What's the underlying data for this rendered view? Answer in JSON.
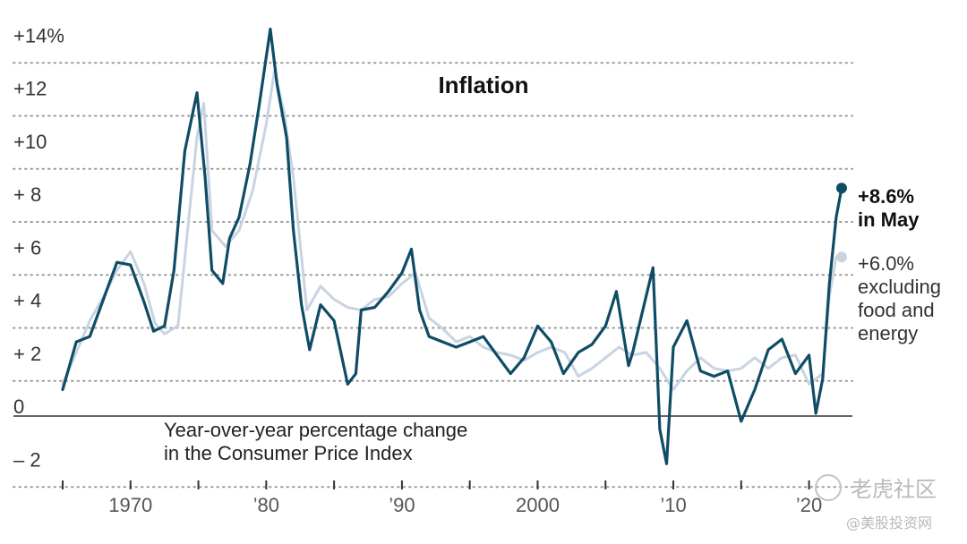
{
  "chart_data": {
    "type": "line",
    "title": "Inflation",
    "subtitle_lines": [
      "Year-over-year percentage change",
      "in the Consumer Price Index"
    ],
    "ylim": [
      -2.5,
      14.5
    ],
    "xlim": [
      1965,
      2022.6
    ],
    "y_ticks": [
      {
        "value": 14,
        "label": "+14%"
      },
      {
        "value": 12,
        "label": "+12"
      },
      {
        "value": 10,
        "label": "+10"
      },
      {
        "value": 8,
        "label": "+  8"
      },
      {
        "value": 6,
        "label": "+  6"
      },
      {
        "value": 4,
        "label": "+  4"
      },
      {
        "value": 2,
        "label": "+  2"
      },
      {
        "value": 0,
        "label": "0"
      },
      {
        "value": -2,
        "label": "–  2"
      }
    ],
    "x_tick_marks": [
      1965,
      1970,
      1975,
      1980,
      1985,
      1990,
      1995,
      2000,
      2005,
      2010,
      2015,
      2020
    ],
    "x_tick_labels": [
      {
        "value": 1970,
        "label": "1970"
      },
      {
        "value": 1980,
        "label": "’80"
      },
      {
        "value": 1990,
        "label": "’90"
      },
      {
        "value": 2000,
        "label": "2000"
      },
      {
        "value": 2010,
        "label": "’10"
      },
      {
        "value": 2020,
        "label": "’20"
      }
    ],
    "series": [
      {
        "name": "Core CPI (excluding food and energy)",
        "color": "#c9d4e2",
        "points": [
          [
            1965.0,
            1.2
          ],
          [
            1966.0,
            2.4
          ],
          [
            1967.0,
            3.6
          ],
          [
            1968.0,
            4.5
          ],
          [
            1969.0,
            5.5
          ],
          [
            1970.0,
            6.2
          ],
          [
            1971.0,
            5.0
          ],
          [
            1971.8,
            3.5
          ],
          [
            1972.5,
            3.1
          ],
          [
            1973.5,
            3.4
          ],
          [
            1974.3,
            7.5
          ],
          [
            1974.9,
            10.5
          ],
          [
            1975.4,
            11.8
          ],
          [
            1976.0,
            7.0
          ],
          [
            1977.0,
            6.4
          ],
          [
            1978.0,
            7.0
          ],
          [
            1979.0,
            8.5
          ],
          [
            1980.0,
            11.0
          ],
          [
            1980.6,
            13.0
          ],
          [
            1981.3,
            11.5
          ],
          [
            1982.0,
            9.0
          ],
          [
            1983.0,
            4.0
          ],
          [
            1984.0,
            4.9
          ],
          [
            1985.0,
            4.4
          ],
          [
            1986.0,
            4.1
          ],
          [
            1987.0,
            4.0
          ],
          [
            1988.0,
            4.4
          ],
          [
            1989.0,
            4.5
          ],
          [
            1990.0,
            5.0
          ],
          [
            1991.0,
            5.4
          ],
          [
            1992.0,
            3.7
          ],
          [
            1993.0,
            3.3
          ],
          [
            1994.0,
            2.8
          ],
          [
            1995.0,
            3.0
          ],
          [
            1996.0,
            2.6
          ],
          [
            1997.0,
            2.4
          ],
          [
            1998.0,
            2.3
          ],
          [
            1999.0,
            2.1
          ],
          [
            2000.0,
            2.4
          ],
          [
            2001.0,
            2.6
          ],
          [
            2002.0,
            2.4
          ],
          [
            2003.0,
            1.5
          ],
          [
            2004.0,
            1.8
          ],
          [
            2005.0,
            2.2
          ],
          [
            2006.0,
            2.6
          ],
          [
            2007.0,
            2.3
          ],
          [
            2008.0,
            2.4
          ],
          [
            2009.0,
            1.8
          ],
          [
            2010.0,
            1.0
          ],
          [
            2011.0,
            1.7
          ],
          [
            2012.0,
            2.2
          ],
          [
            2013.0,
            1.8
          ],
          [
            2014.0,
            1.7
          ],
          [
            2015.0,
            1.8
          ],
          [
            2016.0,
            2.2
          ],
          [
            2017.0,
            1.8
          ],
          [
            2018.0,
            2.2
          ],
          [
            2019.0,
            2.3
          ],
          [
            2020.0,
            1.2
          ],
          [
            2021.0,
            1.6
          ],
          [
            2021.5,
            4.5
          ],
          [
            2022.0,
            6.0
          ],
          [
            2022.4,
            6.0
          ]
        ]
      },
      {
        "name": "CPI (all items)",
        "color": "#0f4c66",
        "points": [
          [
            1965.0,
            1.0
          ],
          [
            1966.0,
            2.8
          ],
          [
            1967.0,
            3.0
          ],
          [
            1968.0,
            4.4
          ],
          [
            1969.0,
            5.8
          ],
          [
            1970.0,
            5.7
          ],
          [
            1971.0,
            4.3
          ],
          [
            1971.7,
            3.2
          ],
          [
            1972.5,
            3.4
          ],
          [
            1973.2,
            5.5
          ],
          [
            1974.0,
            10.0
          ],
          [
            1974.9,
            12.2
          ],
          [
            1975.5,
            9.0
          ],
          [
            1976.0,
            5.5
          ],
          [
            1976.8,
            5.0
          ],
          [
            1977.3,
            6.7
          ],
          [
            1978.0,
            7.5
          ],
          [
            1978.8,
            9.5
          ],
          [
            1979.5,
            11.8
          ],
          [
            1980.3,
            14.6
          ],
          [
            1980.8,
            12.5
          ],
          [
            1981.5,
            10.5
          ],
          [
            1982.0,
            7.0
          ],
          [
            1982.6,
            4.2
          ],
          [
            1983.2,
            2.5
          ],
          [
            1984.0,
            4.2
          ],
          [
            1985.0,
            3.6
          ],
          [
            1986.0,
            1.2
          ],
          [
            1986.6,
            1.6
          ],
          [
            1987.0,
            4.0
          ],
          [
            1988.0,
            4.1
          ],
          [
            1989.0,
            4.7
          ],
          [
            1990.0,
            5.4
          ],
          [
            1990.7,
            6.3
          ],
          [
            1991.3,
            4.0
          ],
          [
            1992.0,
            3.0
          ],
          [
            1993.0,
            2.8
          ],
          [
            1994.0,
            2.6
          ],
          [
            1995.0,
            2.8
          ],
          [
            1996.0,
            3.0
          ],
          [
            1997.0,
            2.3
          ],
          [
            1998.0,
            1.6
          ],
          [
            1999.0,
            2.2
          ],
          [
            2000.0,
            3.4
          ],
          [
            2001.0,
            2.8
          ],
          [
            2001.9,
            1.6
          ],
          [
            2003.0,
            2.4
          ],
          [
            2004.0,
            2.7
          ],
          [
            2005.0,
            3.4
          ],
          [
            2005.8,
            4.7
          ],
          [
            2006.7,
            1.9
          ],
          [
            2007.0,
            2.4
          ],
          [
            2008.5,
            5.6
          ],
          [
            2009.0,
            -0.5
          ],
          [
            2009.5,
            -1.8
          ],
          [
            2010.0,
            2.6
          ],
          [
            2011.0,
            3.6
          ],
          [
            2012.0,
            1.7
          ],
          [
            2013.0,
            1.5
          ],
          [
            2014.0,
            1.7
          ],
          [
            2015.0,
            -0.2
          ],
          [
            2016.0,
            1.0
          ],
          [
            2017.0,
            2.5
          ],
          [
            2018.0,
            2.9
          ],
          [
            2019.0,
            1.6
          ],
          [
            2020.0,
            2.3
          ],
          [
            2020.5,
            0.1
          ],
          [
            2021.0,
            1.4
          ],
          [
            2021.5,
            5.0
          ],
          [
            2022.0,
            7.5
          ],
          [
            2022.4,
            8.6
          ]
        ]
      }
    ],
    "end_labels": {
      "headline": {
        "value": 8.6,
        "text_line1": "+8.6%",
        "text_line2": "in May"
      },
      "core": {
        "value": 6.0,
        "text_lines": [
          "+6.0%",
          "excluding",
          "food and",
          "energy"
        ]
      }
    }
  },
  "watermark": {
    "line1": "老虎社区",
    "line2": "@美股投资网"
  }
}
